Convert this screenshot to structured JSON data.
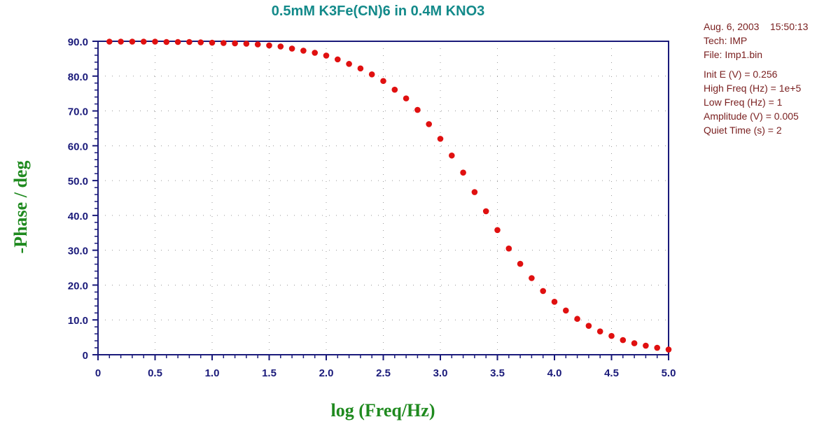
{
  "chart_data": {
    "type": "scatter",
    "title": "0.5mM K3Fe(CN)6 in 0.4M KNO3",
    "xlabel": "log (Freq/Hz)",
    "ylabel": "-Phase / deg",
    "xlim": [
      0,
      5
    ],
    "ylim": [
      0,
      90
    ],
    "x_ticks": [
      "0",
      "0.5",
      "1.0",
      "1.5",
      "2.0",
      "2.5",
      "3.0",
      "3.5",
      "4.0",
      "4.5",
      "5.0"
    ],
    "y_ticks": [
      "0",
      "10.0",
      "20.0",
      "30.0",
      "40.0",
      "50.0",
      "60.0",
      "70.0",
      "80.0",
      "90.0"
    ],
    "grid": true,
    "marker_color": "#e01010",
    "series": [
      {
        "x": [
          0.1,
          0.2,
          0.3,
          0.4,
          0.5,
          0.6,
          0.7,
          0.8,
          0.9,
          1.0,
          1.1,
          1.2,
          1.3,
          1.4,
          1.5,
          1.6,
          1.7,
          1.8,
          1.9,
          2.0,
          2.1,
          2.2,
          2.3,
          2.4,
          2.5,
          2.6,
          2.7,
          2.8,
          2.9,
          3.0,
          3.1,
          3.2,
          3.3,
          3.4,
          3.5,
          3.6,
          3.7,
          3.8,
          3.9,
          4.0,
          4.1,
          4.2,
          4.3,
          4.4,
          4.5,
          4.6,
          4.7,
          4.8,
          4.9,
          5.0
        ],
        "y": [
          89.9,
          89.9,
          89.9,
          89.9,
          89.9,
          89.8,
          89.8,
          89.8,
          89.7,
          89.6,
          89.5,
          89.4,
          89.3,
          89.1,
          88.8,
          88.5,
          87.9,
          87.3,
          86.7,
          85.9,
          84.8,
          83.5,
          82.2,
          80.5,
          78.6,
          76.1,
          73.6,
          70.3,
          66.2,
          62.0,
          57.2,
          52.3,
          46.7,
          41.2,
          35.8,
          30.5,
          26.1,
          22.0,
          18.3,
          15.2,
          12.7,
          10.3,
          8.3,
          6.7,
          5.4,
          4.2,
          3.3,
          2.6,
          2.0,
          1.5
        ]
      }
    ]
  },
  "info": {
    "date": "Aug. 6, 2003",
    "time": "15:50:13",
    "tech": "Tech: IMP",
    "file": "File: Imp1.bin",
    "init_e": "Init E (V) = 0.256",
    "high_freq": "High Freq (Hz) = 1e+5",
    "low_freq": "Low Freq (Hz) = 1",
    "amplitude": "Amplitude (V) = 0.005",
    "quiet_time": "Quiet Time (s) = 2"
  }
}
